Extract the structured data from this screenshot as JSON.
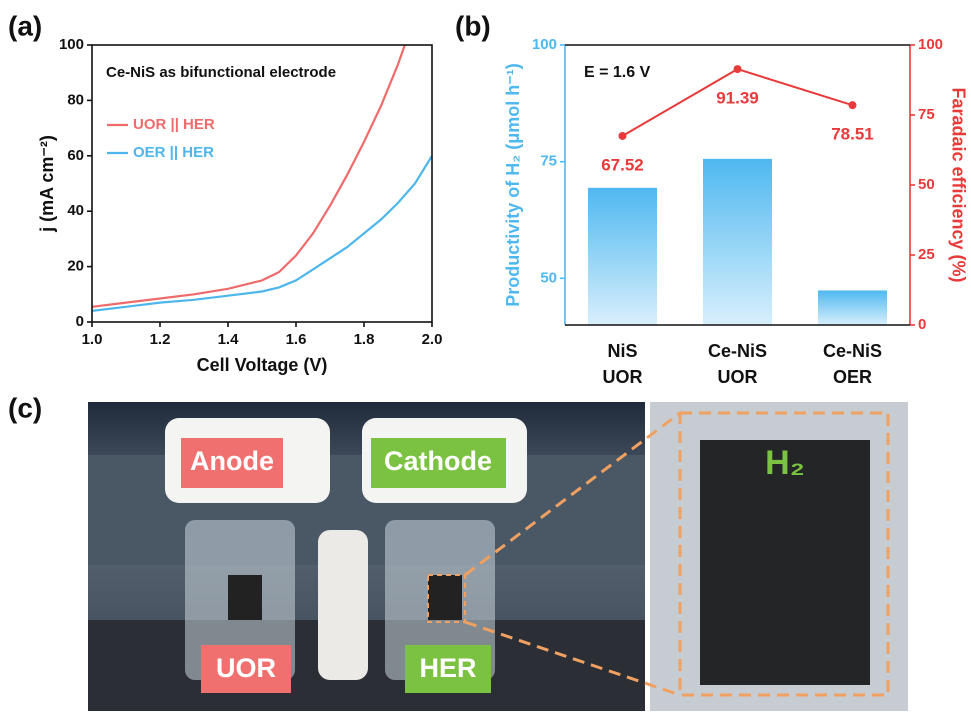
{
  "chart_data": [
    {
      "type": "line",
      "panel_label": "(a)",
      "title": "Ce-NiS as bifunctional electrode",
      "xlabel": "Cell Voltage (V)",
      "ylabel": "j (mA cm⁻²)",
      "xlim": [
        1.0,
        2.0
      ],
      "ylim": [
        0,
        100
      ],
      "xticks": [
        {
          "value": 1.0,
          "label": "1.0"
        },
        {
          "value": 1.2,
          "label": "1.2"
        },
        {
          "value": 1.4,
          "label": "1.4"
        },
        {
          "value": 1.6,
          "label": "1.6"
        },
        {
          "value": 1.8,
          "label": "1.8"
        },
        {
          "value": 2.0,
          "label": "2.0"
        }
      ],
      "yticks": [
        0,
        20,
        40,
        60,
        80,
        100
      ],
      "legend": "upper left",
      "series": [
        {
          "name": "UOR || HER",
          "color": "#ef6b6b",
          "x": [
            1.0,
            1.1,
            1.2,
            1.3,
            1.4,
            1.5,
            1.55,
            1.6,
            1.65,
            1.7,
            1.75,
            1.8,
            1.85,
            1.9,
            1.92
          ],
          "values": [
            5.5,
            7,
            8.5,
            10,
            12,
            15,
            18,
            24,
            32,
            42,
            53,
            65,
            78,
            93,
            100
          ]
        },
        {
          "name": "OER || HER",
          "color": "#4db6ec",
          "x": [
            1.0,
            1.1,
            1.2,
            1.3,
            1.4,
            1.5,
            1.55,
            1.6,
            1.65,
            1.7,
            1.75,
            1.8,
            1.85,
            1.9,
            1.95,
            2.0
          ],
          "values": [
            4,
            5.5,
            7,
            8,
            9.5,
            11,
            12.5,
            15,
            19,
            23,
            27,
            32,
            37,
            43,
            50,
            60
          ]
        }
      ]
    },
    {
      "type": "bar",
      "panel_label": "(b)",
      "annotation": "E = 1.6 V",
      "ylabel": "Productivity of H₂ (μmol h⁻¹)",
      "y2label": "Faradaic efficiency (%)",
      "categories": [
        [
          "NiS",
          "UOR"
        ],
        [
          "Ce-NiS",
          "UOR"
        ],
        [
          "Ce-NiS",
          "OER"
        ]
      ],
      "ylim": [
        40,
        100
      ],
      "yticks": [
        50,
        75,
        100
      ],
      "y2lim": [
        0,
        100
      ],
      "y2ticks": [
        0,
        25,
        50,
        75,
        100
      ],
      "series": [
        {
          "color": "#4fb8f0",
          "values": [
            69.4,
            75.6,
            47.4
          ]
        },
        {
          "type": "line",
          "axis": "y2",
          "color": "#e83a3a",
          "values": [
            67.52,
            91.39,
            78.51
          ]
        }
      ]
    }
  ],
  "photo": {
    "panel_label": "(c)",
    "labels": [
      "Anode",
      "Cathode",
      "UOR",
      "HER"
    ],
    "inset_label": "H₂"
  }
}
